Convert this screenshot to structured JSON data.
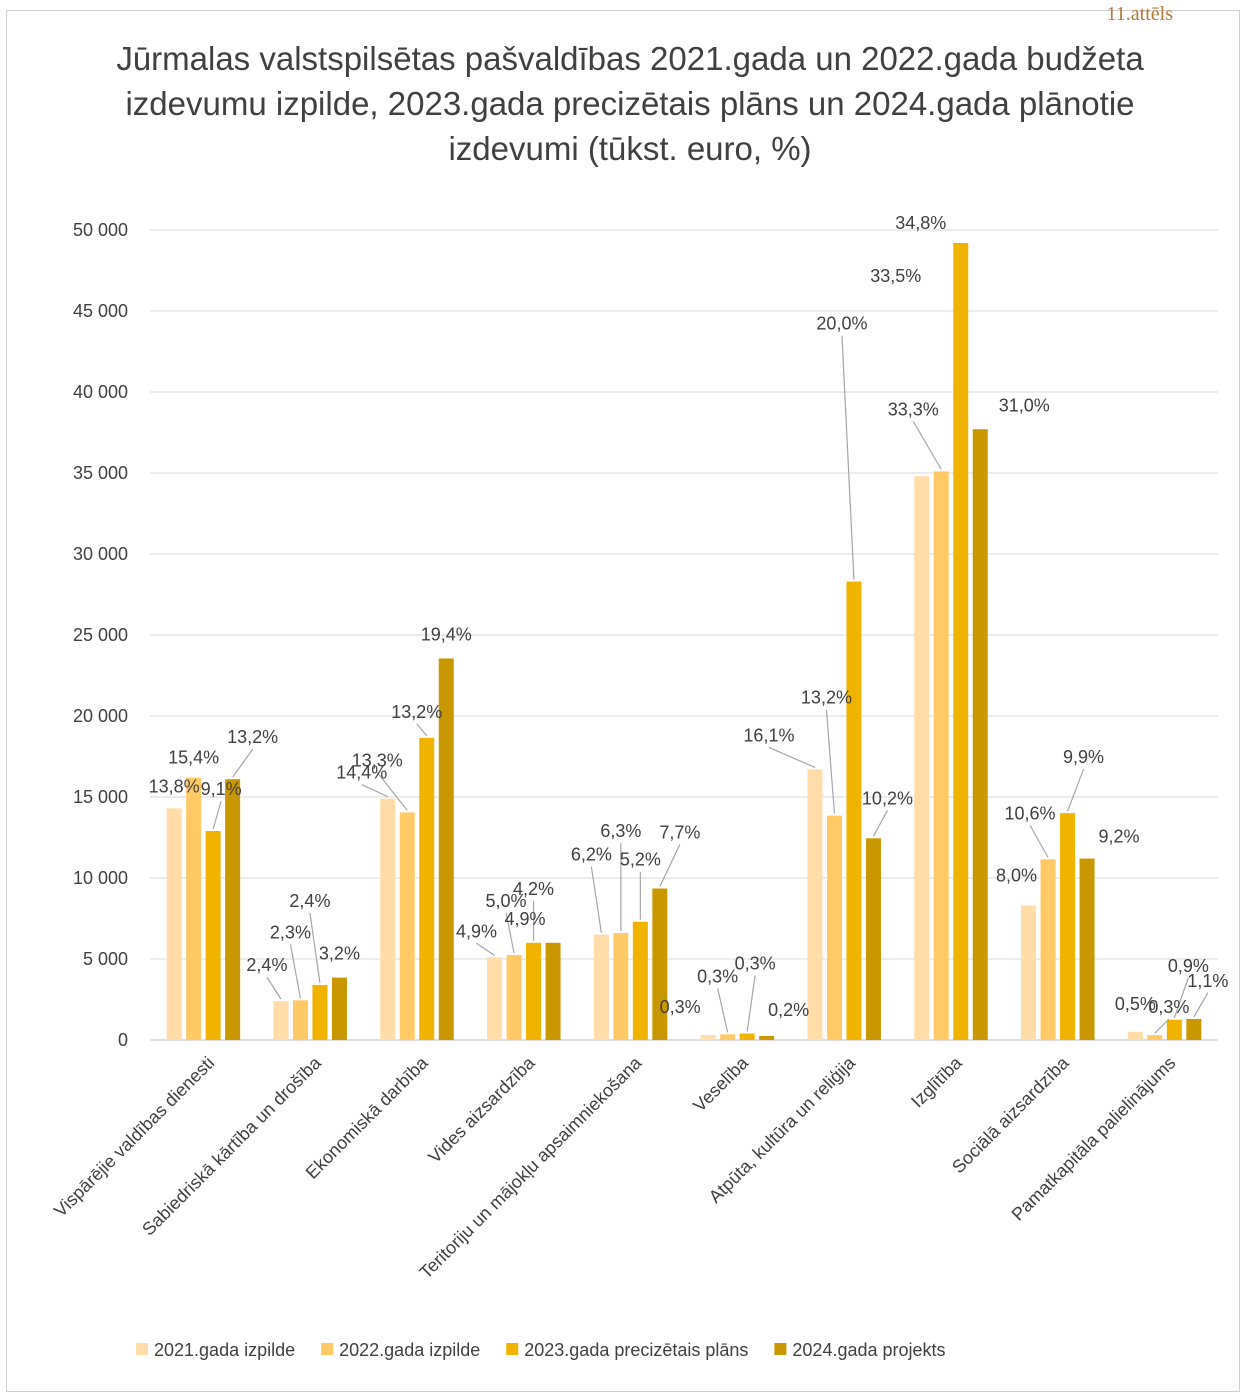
{
  "corner_label": "11.attēls",
  "colors": {
    "s2021": "#ffdca8",
    "s2022": "#ffc966",
    "s2023": "#f0b300",
    "s2024": "#c99700",
    "grid": "#d9d9d9",
    "axis": "#bfbfbf",
    "text": "#404040",
    "leader": "#a6a6a6"
  },
  "chart_data": {
    "type": "bar",
    "title": "Jūrmalas valstspilsētas pašvaldības 2021.gada un 2022.gada budžeta izdevumu izpilde, 2023.gada precizētais plāns un 2024.gada plānotie izdevumi (tūkst. euro, %)",
    "ylim": [
      0,
      50000
    ],
    "yticks": [
      "0",
      "5 000",
      "10 000",
      "15 000",
      "20 000",
      "25 000",
      "30 000",
      "35 000",
      "40 000",
      "45 000",
      "50 000"
    ],
    "grid": true,
    "legend_position": "bottom",
    "categories": [
      "Vispārējie valdības dienesti",
      "Sabiedriskā kārtība un drošība",
      "Ekonomiskā darbība",
      "Vides aizsardzība",
      "Teritoriju un mājokļu apsaimniekošana",
      "Veselība",
      "Atpūta, kultūra un reliģija",
      "Izglītība",
      "Sociālā aizsardzība",
      "Pamatkapitāla palielinājums"
    ],
    "series": [
      {
        "name": "2021.gada izpilde",
        "values": [
          14300,
          2400,
          14900,
          5100,
          6500,
          300,
          16700,
          34800,
          8300,
          500
        ],
        "labels": [
          "13,8%",
          "2,4%",
          "14,4%",
          "4,9%",
          "6,2%",
          "0,3%",
          "16,1%",
          "33,5%",
          "8,0%",
          "0,5%"
        ]
      },
      {
        "name": "2022.gada izpilde",
        "values": [
          16200,
          2450,
          14050,
          5250,
          6600,
          350,
          13850,
          35100,
          11150,
          300
        ],
        "labels": [
          "15,4%",
          "2,3%",
          "13,3%",
          "5,0%",
          "6,3%",
          "0,3%",
          "13,2%",
          "33,3%",
          "10,6%",
          "0,3%"
        ]
      },
      {
        "name": "2023.gada precizētais plāns",
        "values": [
          12900,
          3400,
          18650,
          6000,
          7300,
          400,
          28300,
          49200,
          14000,
          1250
        ],
        "labels": [
          "9,1%",
          "2,4%",
          "13,2%",
          "4,2%",
          "5,2%",
          "0,3%",
          "20,0%",
          "34,8%",
          "9,9%",
          "0,9%"
        ]
      },
      {
        "name": "2024.gada projekts",
        "values": [
          16100,
          3850,
          23550,
          6000,
          9350,
          250,
          12450,
          37700,
          11200,
          1300
        ],
        "labels": [
          "13,2%",
          "3,2%",
          "19,4%",
          "4,9%",
          "7,7%",
          "0,2%",
          "10,2%",
          "31,0%",
          "9,2%",
          "1,1%"
        ]
      }
    ]
  }
}
